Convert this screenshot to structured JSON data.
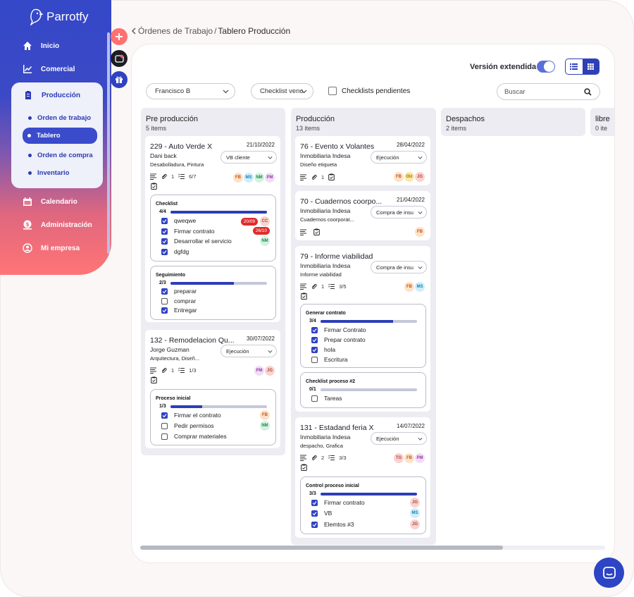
{
  "app": {
    "name": "Parrotfy"
  },
  "sidebar": {
    "items": [
      {
        "label": "Inicio",
        "icon": "home-icon"
      },
      {
        "label": "Comercial",
        "icon": "chart-line-icon"
      },
      {
        "label": "Producción",
        "icon": "clipboard-icon"
      },
      {
        "label": "Calendario",
        "icon": "calendar-icon"
      },
      {
        "label": "Administración",
        "icon": "dollar-icon"
      },
      {
        "label": "Mi empresa",
        "icon": "user-circle-icon"
      }
    ],
    "submenu": [
      "Orden de trabajo",
      "Tablero",
      "Orden de compra",
      "Inventario"
    ]
  },
  "breadcrumb": {
    "parent": "Órdenes de Trabajo",
    "separator": "/",
    "current": "Tablero Producción"
  },
  "toolbar": {
    "version_label": "Versión extendida",
    "user_filter": "Francisco B",
    "checklist_filter": "Checklist venc",
    "pending_label": "Checklists pendientes",
    "search_placeholder": "Buscar"
  },
  "columns": [
    {
      "title": "Pre producción",
      "count": "5 items"
    },
    {
      "title": "Producción",
      "count": "13 items"
    },
    {
      "title": "Despachos",
      "count": "2 items"
    },
    {
      "title": "libre",
      "count": "0 ite"
    }
  ],
  "cards": {
    "c229": {
      "title": "229 - Auto Verde X",
      "date": "21/10/2022",
      "client": "Dani back",
      "desc": "Desabolladura, Pintura",
      "status": "VB cliente",
      "attachments": "1",
      "tasks": "6/7",
      "avatars": [
        "FB",
        "MS",
        "NM",
        "PM"
      ],
      "checklists": [
        {
          "title": "Checklist",
          "count": "4/4",
          "progress": 1.0,
          "items": [
            {
              "label": "qweqwe",
              "checked": true,
              "badge": "20/09",
              "who": "CC"
            },
            {
              "label": "Firmar contrato",
              "checked": true,
              "badge": "26/10",
              "who": ""
            },
            {
              "label": "Desarrollar el servicio",
              "checked": true,
              "badge": "",
              "who": "NM"
            },
            {
              "label": "dgfdg",
              "checked": true,
              "badge": "",
              "who": ""
            }
          ]
        },
        {
          "title": "Seguimiento",
          "count": "2/3",
          "progress": 0.66,
          "items": [
            {
              "label": "preparar",
              "checked": true
            },
            {
              "label": "comprar",
              "checked": false
            },
            {
              "label": "Entregar",
              "checked": true
            }
          ]
        }
      ]
    },
    "c132": {
      "title": "132 - Remodelacion Qu...",
      "date": "30/07/2022",
      "client": "Jorge Guzman",
      "desc": "Arquitectura, Diseñ...",
      "status": "Ejecución",
      "attachments": "1",
      "tasks": "1/3",
      "avatars": [
        "PM",
        "JG"
      ],
      "checklists": [
        {
          "title": "Proceso inicial",
          "count": "1/3",
          "progress": 0.33,
          "items": [
            {
              "label": "Firmar el contrato",
              "checked": true,
              "who": "FB"
            },
            {
              "label": "Pedir permisos",
              "checked": false,
              "who": "NM"
            },
            {
              "label": "Comprar materiales",
              "checked": false,
              "who": ""
            }
          ]
        }
      ]
    },
    "c76": {
      "title": "76 - Evento x Volantes",
      "date": "28/04/2022",
      "client": "Inmobiliaria Indesa",
      "desc": "Diseño etiqueta",
      "status": "Ejecución",
      "attachments": "1",
      "avatars": [
        "FB",
        "OU",
        "JG"
      ]
    },
    "c70": {
      "title": "70 - Cuadernos coorpo...",
      "date": "21/04/2022",
      "client": "Inmobiliaria Indesa",
      "desc": "Cuadernos coorporat...",
      "status": "Compra de insu",
      "avatars": [
        "FB"
      ]
    },
    "c79": {
      "title": "79 - Informe viabilidad",
      "client": "Inmobiliaria Indesa",
      "desc": "Informe viabilidad",
      "status": "Compra de insu",
      "attachments": "1",
      "tasks": "3/5",
      "avatars": [
        "FB",
        "MS"
      ],
      "checklists": [
        {
          "title": "Generar contrato",
          "count": "3/4",
          "progress": 0.75,
          "items": [
            {
              "label": "Firmar Contrato",
              "checked": true
            },
            {
              "label": "Prepar contrato",
              "checked": true
            },
            {
              "label": "hola",
              "checked": true
            },
            {
              "label": "Escritura",
              "checked": false
            }
          ]
        },
        {
          "title": "Checklist proceso #2",
          "count": "0/1",
          "progress": 0.0,
          "items": [
            {
              "label": "Tareas",
              "checked": false
            }
          ]
        }
      ]
    },
    "c131": {
      "title": "131 - Estadand feria X",
      "date": "14/07/2022",
      "client": "Inmobiliaria Indesa",
      "desc": "despacho, Grafica",
      "status": "Ejecución",
      "attachments": "2",
      "tasks": "3/3",
      "avatars": [
        "TG",
        "FB",
        "PM"
      ],
      "checklists": [
        {
          "title": "Control proceso inicial",
          "count": "3/3",
          "progress": 1.0,
          "items": [
            {
              "label": "Firmar contrato",
              "checked": true,
              "who": "JG"
            },
            {
              "label": "VB",
              "checked": true,
              "who": "MS"
            },
            {
              "label": "Elemtos #3",
              "checked": true,
              "who": "JG"
            }
          ]
        }
      ]
    }
  },
  "colors": {
    "primary": "#2f42c2",
    "accent": "#ff7575",
    "badge": "#e02b2b"
  }
}
